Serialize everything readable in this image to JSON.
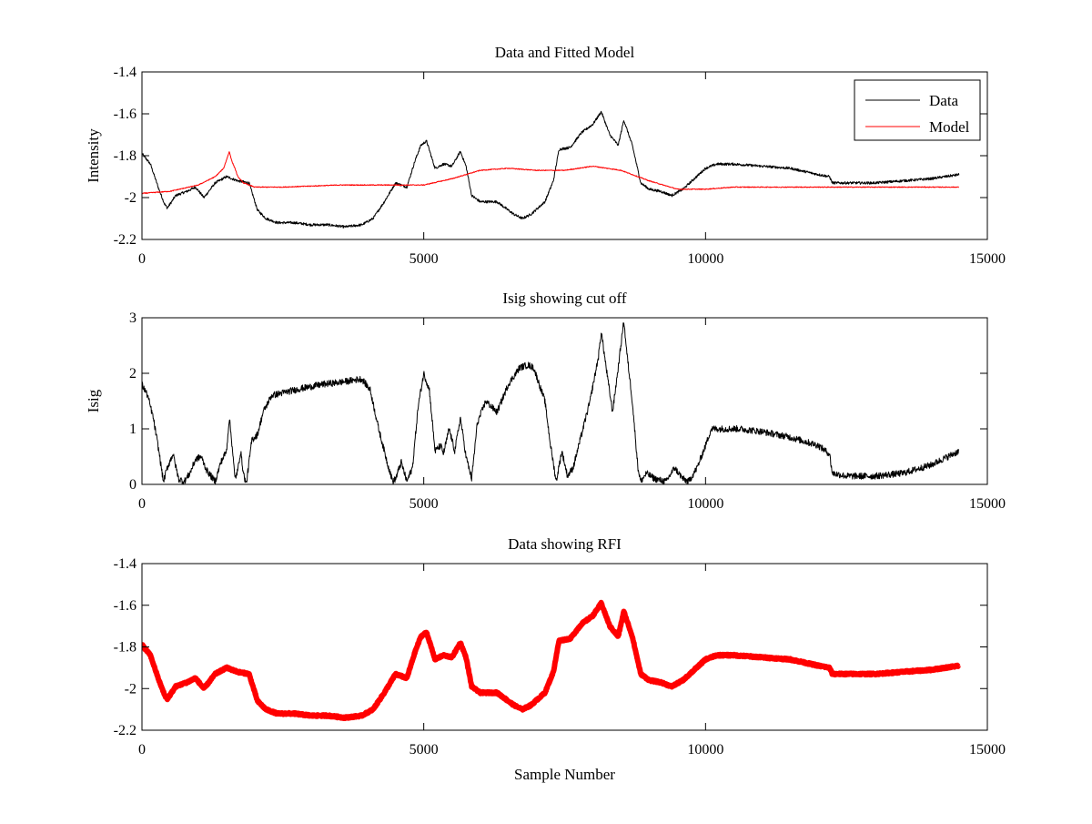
{
  "figure": {
    "background": "#ffffff",
    "axis_color": "#000000"
  },
  "chart_data": [
    {
      "type": "line",
      "title": "Data and Fitted Model",
      "xlabel": "",
      "ylabel": "Intensity",
      "xlim": [
        0,
        15000
      ],
      "ylim": [
        -2.2,
        -1.4
      ],
      "xticks": [
        0,
        5000,
        10000,
        15000
      ],
      "xtick_labels": [
        "0",
        "5000",
        "10000",
        "15000"
      ],
      "yticks": [
        -2.2,
        -2,
        -1.8,
        -1.6,
        -1.4
      ],
      "ytick_labels": [
        "-2.2",
        "-2",
        "-1.8",
        "-1.6",
        "-1.4"
      ],
      "legend_position": "top-right",
      "grid": false,
      "series": [
        {
          "name": "Data",
          "color": "#000000",
          "line_width": 1,
          "noise": 0.006,
          "x": [
            0,
            150,
            300,
            400,
            450,
            600,
            800,
            950,
            1100,
            1300,
            1500,
            1700,
            1900,
            2050,
            2200,
            2400,
            2700,
            3000,
            3300,
            3600,
            3900,
            4100,
            4300,
            4500,
            4700,
            4850,
            4950,
            5050,
            5200,
            5350,
            5500,
            5650,
            5750,
            5850,
            6000,
            6300,
            6600,
            6750,
            6900,
            7150,
            7300,
            7400,
            7600,
            7800,
            8000,
            8150,
            8300,
            8450,
            8550,
            8700,
            8850,
            9000,
            9200,
            9400,
            9600,
            9800,
            10000,
            10200,
            10500,
            11000,
            11500,
            12000,
            12200,
            12250,
            12500,
            13000,
            13500,
            14000,
            14500
          ],
          "y": [
            -1.79,
            -1.84,
            -1.96,
            -2.03,
            -2.05,
            -1.99,
            -1.97,
            -1.95,
            -2.0,
            -1.93,
            -1.9,
            -1.92,
            -1.93,
            -2.06,
            -2.1,
            -2.12,
            -2.12,
            -2.13,
            -2.13,
            -2.14,
            -2.13,
            -2.1,
            -2.02,
            -1.93,
            -1.95,
            -1.82,
            -1.75,
            -1.73,
            -1.86,
            -1.84,
            -1.85,
            -1.78,
            -1.85,
            -1.99,
            -2.02,
            -2.02,
            -2.08,
            -2.1,
            -2.08,
            -2.02,
            -1.92,
            -1.77,
            -1.76,
            -1.69,
            -1.65,
            -1.59,
            -1.7,
            -1.75,
            -1.63,
            -1.75,
            -1.93,
            -1.96,
            -1.97,
            -1.99,
            -1.96,
            -1.91,
            -1.86,
            -1.84,
            -1.84,
            -1.85,
            -1.86,
            -1.89,
            -1.9,
            -1.93,
            -1.93,
            -1.93,
            -1.92,
            -1.91,
            -1.89
          ]
        },
        {
          "name": "Model",
          "color": "#ff0000",
          "line_width": 1,
          "noise": 0.002,
          "x": [
            0,
            500,
            1000,
            1300,
            1450,
            1550,
            1600,
            1650,
            1700,
            1800,
            2000,
            2500,
            3500,
            4500,
            5000,
            5500,
            6000,
            6500,
            7000,
            7500,
            8000,
            8500,
            9000,
            9500,
            10000,
            10500,
            11000,
            12000,
            13000,
            14500
          ],
          "y": [
            -1.98,
            -1.97,
            -1.94,
            -1.9,
            -1.86,
            -1.78,
            -1.83,
            -1.86,
            -1.9,
            -1.93,
            -1.95,
            -1.95,
            -1.94,
            -1.94,
            -1.94,
            -1.91,
            -1.87,
            -1.86,
            -1.87,
            -1.87,
            -1.85,
            -1.87,
            -1.92,
            -1.96,
            -1.96,
            -1.95,
            -1.95,
            -1.95,
            -1.95,
            -1.95
          ]
        }
      ]
    },
    {
      "type": "line",
      "title": "Isig showing cut off",
      "xlabel": "",
      "ylabel": "Isig",
      "xlim": [
        0,
        15000
      ],
      "ylim": [
        0,
        3
      ],
      "xticks": [
        0,
        5000,
        10000,
        15000
      ],
      "xtick_labels": [
        "0",
        "5000",
        "10000",
        "15000"
      ],
      "yticks": [
        0,
        1,
        2,
        3
      ],
      "ytick_labels": [
        "0",
        "1",
        "2",
        "3"
      ],
      "grid": false,
      "series": [
        {
          "color": "#000000",
          "line_width": 1,
          "noise": 0.06,
          "x": [
            0,
            100,
            200,
            300,
            380,
            450,
            550,
            650,
            750,
            850,
            950,
            1050,
            1150,
            1300,
            1400,
            1500,
            1550,
            1600,
            1650,
            1700,
            1750,
            1800,
            1850,
            1950,
            2050,
            2150,
            2300,
            2500,
            2800,
            3200,
            3600,
            3900,
            4050,
            4200,
            4350,
            4450,
            4500,
            4600,
            4700,
            4800,
            4900,
            5000,
            5100,
            5200,
            5300,
            5350,
            5450,
            5550,
            5650,
            5750,
            5850,
            5950,
            6100,
            6300,
            6500,
            6700,
            6850,
            6950,
            7150,
            7250,
            7350,
            7450,
            7550,
            7650,
            7800,
            7950,
            8100,
            8150,
            8250,
            8350,
            8450,
            8550,
            8600,
            8700,
            8800,
            8850,
            8950,
            9100,
            9300,
            9450,
            9600,
            9700,
            9850,
            10000,
            10100,
            10600,
            11000,
            11500,
            12000,
            12200,
            12250,
            12500,
            13000,
            13500,
            14000,
            14500
          ],
          "y": [
            1.8,
            1.6,
            1.2,
            0.6,
            0.05,
            0.3,
            0.55,
            0.1,
            0.05,
            0.2,
            0.45,
            0.5,
            0.25,
            0.05,
            0.4,
            0.6,
            1.2,
            0.7,
            0.1,
            0.25,
            0.6,
            0.2,
            0.0,
            0.8,
            0.9,
            1.3,
            1.6,
            1.65,
            1.72,
            1.8,
            1.85,
            1.9,
            1.7,
            1.0,
            0.4,
            0.05,
            0.1,
            0.4,
            0.05,
            0.3,
            1.4,
            2.0,
            1.7,
            0.6,
            0.7,
            0.55,
            1.0,
            0.6,
            1.2,
            0.5,
            0.1,
            1.1,
            1.5,
            1.3,
            1.8,
            2.1,
            2.15,
            2.1,
            1.5,
            0.7,
            0.05,
            0.6,
            0.15,
            0.3,
            0.9,
            1.5,
            2.3,
            2.75,
            2.0,
            1.3,
            2.1,
            2.95,
            2.4,
            1.5,
            0.3,
            0.05,
            0.2,
            0.1,
            0.05,
            0.3,
            0.1,
            0.05,
            0.3,
            0.7,
            1.0,
            1.0,
            0.95,
            0.85,
            0.7,
            0.55,
            0.2,
            0.15,
            0.15,
            0.2,
            0.35,
            0.6
          ]
        }
      ]
    },
    {
      "type": "line",
      "title": "Data showing RFI",
      "xlabel": "Sample Number",
      "ylabel": "",
      "xlim": [
        0,
        15000
      ],
      "ylim": [
        -2.2,
        -1.4
      ],
      "xticks": [
        0,
        5000,
        10000,
        15000
      ],
      "xtick_labels": [
        "0",
        "5000",
        "10000",
        "15000"
      ],
      "yticks": [
        -2.2,
        -2,
        -1.8,
        -1.6,
        -1.4
      ],
      "ytick_labels": [
        "-2.2",
        "-2",
        "-1.8",
        "-1.6",
        "-1.4"
      ],
      "grid": false,
      "series": [
        {
          "color": "#ff0000",
          "line_width": 6,
          "noise": 0.004,
          "x": [
            0,
            150,
            300,
            400,
            450,
            600,
            800,
            950,
            1100,
            1300,
            1500,
            1700,
            1900,
            2050,
            2200,
            2400,
            2700,
            3000,
            3300,
            3600,
            3900,
            4100,
            4300,
            4500,
            4700,
            4850,
            4950,
            5050,
            5200,
            5350,
            5500,
            5650,
            5750,
            5850,
            6000,
            6300,
            6600,
            6750,
            6900,
            7150,
            7300,
            7400,
            7600,
            7800,
            8000,
            8150,
            8300,
            8450,
            8550,
            8700,
            8850,
            9000,
            9200,
            9400,
            9600,
            9800,
            10000,
            10200,
            10500,
            11000,
            11500,
            12000,
            12200,
            12250,
            12500,
            13000,
            13500,
            14000,
            14500
          ],
          "y": [
            -1.79,
            -1.84,
            -1.96,
            -2.03,
            -2.05,
            -1.99,
            -1.97,
            -1.95,
            -2.0,
            -1.93,
            -1.9,
            -1.92,
            -1.93,
            -2.06,
            -2.1,
            -2.12,
            -2.12,
            -2.13,
            -2.13,
            -2.14,
            -2.13,
            -2.1,
            -2.02,
            -1.93,
            -1.95,
            -1.82,
            -1.75,
            -1.73,
            -1.86,
            -1.84,
            -1.85,
            -1.78,
            -1.85,
            -1.99,
            -2.02,
            -2.02,
            -2.08,
            -2.1,
            -2.08,
            -2.02,
            -1.92,
            -1.77,
            -1.76,
            -1.69,
            -1.65,
            -1.59,
            -1.7,
            -1.75,
            -1.63,
            -1.75,
            -1.93,
            -1.96,
            -1.97,
            -1.99,
            -1.96,
            -1.91,
            -1.86,
            -1.84,
            -1.84,
            -1.85,
            -1.86,
            -1.89,
            -1.9,
            -1.93,
            -1.93,
            -1.93,
            -1.92,
            -1.91,
            -1.89
          ]
        }
      ]
    }
  ]
}
